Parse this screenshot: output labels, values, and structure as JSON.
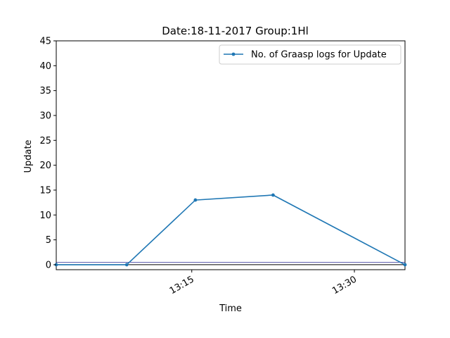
{
  "chart_data": {
    "type": "line",
    "title": "Date:18-11-2017  Group:1Hl",
    "xlabel": "Time",
    "ylabel": "Update",
    "ylim": [
      -1,
      45
    ],
    "yticks": [
      0,
      5,
      10,
      15,
      20,
      25,
      30,
      35,
      40,
      45
    ],
    "xlim": [
      "13:02:30",
      "13:34:40"
    ],
    "xticks": [
      "13:15",
      "13:30"
    ],
    "grid": false,
    "legend_position": "top-right",
    "series": [
      {
        "name": "No. of Graasp logs for Update",
        "color": "#1f77b4",
        "x": [
          "13:02:30",
          "13:09:00",
          "13:15:20",
          "13:22:30",
          "13:34:40"
        ],
        "y": [
          0,
          0,
          13,
          14,
          0
        ]
      }
    ],
    "reference_lines": [
      {
        "y": 0,
        "color": "#000000"
      },
      {
        "y": 0.5,
        "color": "#000080"
      }
    ]
  }
}
